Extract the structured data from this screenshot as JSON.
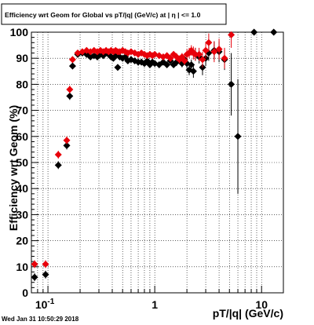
{
  "title": "Efficiency wrt Geom for Global vs pT/|q| (GeV/c) at | η | <= 1.0",
  "timestamp": "Wed Jan 31 10:50:29 2018",
  "colors": {
    "series_black": "#000000",
    "series_red": "#e8000a",
    "grid": "#000000",
    "frame": "#000000"
  },
  "chart_data": {
    "type": "scatter",
    "title": "Efficiency wrt Geom for Global vs pT/|q| (GeV/c) at | η | <= 1.0",
    "xlabel": "pT/|q| (GeV/c)",
    "ylabel": "Efficiency wrt Geom (%)",
    "xscale": "log",
    "xlim": [
      0.07,
      16
    ],
    "ylim": [
      0,
      100
    ],
    "grid": true,
    "x_tick_labels": [
      {
        "value": 0.1,
        "label": "10",
        "exponent": "-1"
      },
      {
        "value": 1,
        "label": "1",
        "exponent": ""
      },
      {
        "value": 10,
        "label": "10",
        "exponent": ""
      }
    ],
    "y_ticks": [
      0,
      10,
      20,
      30,
      40,
      50,
      60,
      70,
      80,
      90,
      100
    ],
    "series": [
      {
        "color": "#000000",
        "points": [
          [
            0.075,
            6,
            1.5
          ],
          [
            0.095,
            7,
            1.5
          ],
          [
            0.125,
            49,
            1.5
          ],
          [
            0.15,
            56.5,
            1.5
          ],
          [
            0.16,
            75.5,
            1.5
          ],
          [
            0.17,
            87,
            1.2
          ],
          [
            0.19,
            91.5,
            0.8
          ],
          [
            0.21,
            92,
            0.8
          ],
          [
            0.23,
            91.5,
            0.8
          ],
          [
            0.25,
            90.5,
            0.8
          ],
          [
            0.27,
            91,
            0.8
          ],
          [
            0.29,
            90.5,
            0.8
          ],
          [
            0.31,
            91.5,
            0.8
          ],
          [
            0.33,
            91,
            0.8
          ],
          [
            0.35,
            92,
            0.8
          ],
          [
            0.37,
            91.5,
            0.8
          ],
          [
            0.39,
            90.5,
            0.8
          ],
          [
            0.41,
            90,
            0.8
          ],
          [
            0.43,
            91,
            0.8
          ],
          [
            0.45,
            86.5,
            1.2
          ],
          [
            0.47,
            90.5,
            0.8
          ],
          [
            0.5,
            90,
            0.8
          ],
          [
            0.53,
            90.5,
            0.8
          ],
          [
            0.56,
            89,
            1
          ],
          [
            0.6,
            89.5,
            1
          ],
          [
            0.65,
            89,
            1
          ],
          [
            0.7,
            88.5,
            1
          ],
          [
            0.75,
            88.5,
            1
          ],
          [
            0.8,
            88,
            1
          ],
          [
            0.85,
            89,
            1
          ],
          [
            0.9,
            87.5,
            1
          ],
          [
            0.95,
            88.5,
            1
          ],
          [
            1.0,
            88,
            1
          ],
          [
            1.1,
            87.5,
            1.2
          ],
          [
            1.2,
            88.5,
            1.2
          ],
          [
            1.3,
            87.5,
            1.2
          ],
          [
            1.4,
            89,
            1.2
          ],
          [
            1.5,
            87.5,
            1.2
          ],
          [
            1.6,
            88.5,
            1.5
          ],
          [
            1.7,
            89.5,
            1.5
          ],
          [
            1.8,
            88,
            1.5
          ],
          [
            1.9,
            89.5,
            1.5
          ],
          [
            2.0,
            88,
            2
          ],
          [
            2.1,
            85.5,
            2
          ],
          [
            2.2,
            87.5,
            2
          ],
          [
            2.3,
            85,
            2.5
          ],
          [
            2.4,
            91.5,
            2.5
          ],
          [
            2.6,
            90.5,
            2.5
          ],
          [
            2.8,
            86.5,
            3
          ],
          [
            3.0,
            90,
            3
          ],
          [
            3.2,
            92,
            3
          ],
          [
            3.6,
            93,
            3.5
          ],
          [
            4.0,
            92.5,
            4
          ],
          [
            4.5,
            89.5,
            4
          ],
          [
            5.2,
            80,
            12
          ],
          [
            6.0,
            60,
            22
          ],
          [
            8.5,
            100,
            0
          ],
          [
            13.0,
            100,
            0
          ]
        ]
      },
      {
        "color": "#e8000a",
        "points": [
          [
            0.075,
            11,
            1.5
          ],
          [
            0.095,
            11,
            1.5
          ],
          [
            0.125,
            53,
            1.5
          ],
          [
            0.15,
            58.5,
            1.5
          ],
          [
            0.16,
            78,
            1.5
          ],
          [
            0.17,
            89.5,
            1.2
          ],
          [
            0.19,
            92,
            0.8
          ],
          [
            0.21,
            92.5,
            0.8
          ],
          [
            0.23,
            93,
            0.8
          ],
          [
            0.25,
            92.5,
            0.8
          ],
          [
            0.27,
            93,
            0.8
          ],
          [
            0.29,
            92.5,
            0.8
          ],
          [
            0.31,
            93,
            0.8
          ],
          [
            0.33,
            92.5,
            0.8
          ],
          [
            0.35,
            93,
            0.8
          ],
          [
            0.37,
            92.5,
            0.8
          ],
          [
            0.39,
            93,
            0.8
          ],
          [
            0.41,
            92.5,
            0.8
          ],
          [
            0.43,
            93,
            0.8
          ],
          [
            0.45,
            92.5,
            0.8
          ],
          [
            0.47,
            92.5,
            0.8
          ],
          [
            0.5,
            93,
            0.8
          ],
          [
            0.53,
            92.5,
            0.8
          ],
          [
            0.56,
            92,
            1
          ],
          [
            0.6,
            92.5,
            1
          ],
          [
            0.65,
            92,
            1
          ],
          [
            0.7,
            91.5,
            1
          ],
          [
            0.75,
            92,
            1
          ],
          [
            0.8,
            91.5,
            1
          ],
          [
            0.85,
            91,
            1
          ],
          [
            0.9,
            91.5,
            1
          ],
          [
            0.95,
            91,
            1
          ],
          [
            1.0,
            91.5,
            1
          ],
          [
            1.1,
            91,
            1.2
          ],
          [
            1.2,
            90.5,
            1.2
          ],
          [
            1.3,
            91,
            1.2
          ],
          [
            1.4,
            90,
            1.2
          ],
          [
            1.5,
            91.5,
            1.2
          ],
          [
            1.6,
            90.5,
            1.5
          ],
          [
            1.7,
            89.5,
            1.5
          ],
          [
            1.8,
            90.5,
            1.5
          ],
          [
            1.9,
            89,
            1.5
          ],
          [
            2.0,
            91.5,
            2
          ],
          [
            2.1,
            92,
            2
          ],
          [
            2.2,
            93,
            2
          ],
          [
            2.3,
            92,
            2.5
          ],
          [
            2.4,
            91.5,
            2.5
          ],
          [
            2.6,
            91.5,
            2.5
          ],
          [
            2.8,
            89.5,
            3
          ],
          [
            3.0,
            93,
            3
          ],
          [
            3.2,
            96,
            3.5
          ],
          [
            3.6,
            92.5,
            4
          ],
          [
            4.0,
            93.5,
            4
          ],
          [
            4.5,
            90,
            4
          ],
          [
            5.2,
            99,
            5
          ]
        ]
      }
    ]
  }
}
